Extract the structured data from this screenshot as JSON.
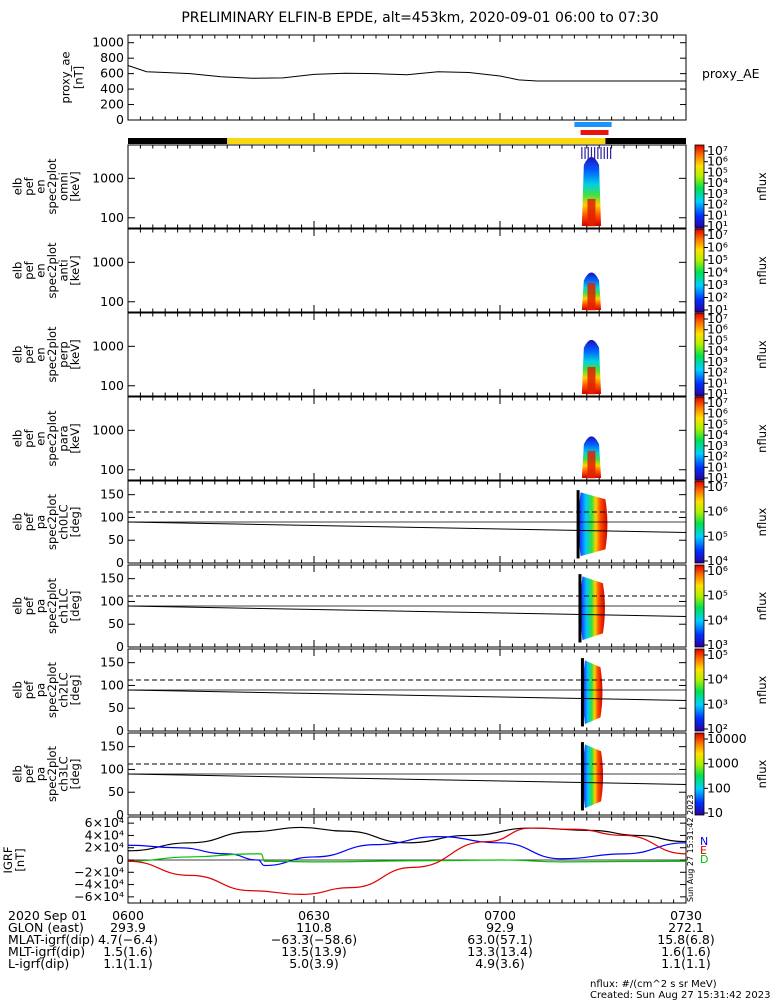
{
  "title": "PRELIMINARY ELFIN-B EPDE, alt=453km, 2020-09-01 06:00 to 07:30",
  "colors": {
    "state_black": "#000000",
    "state_yellow": "#f7d70f",
    "bar_blue": "#1e90ff",
    "bar_red": "#e8140f",
    "bz_black": "#000000",
    "bx_blue": "#0000ff",
    "by_green": "#00c000",
    "bmag_red": "#e00000"
  },
  "chart_data": [
    {
      "id": "proxy_ae",
      "type": "line",
      "ylabel_lines": [
        "proxy_ae",
        "[nT]"
      ],
      "right_label": "proxy_AE",
      "ylim": [
        0,
        1100
      ],
      "yticks": [
        "0",
        "200",
        "400",
        "600",
        "800",
        "1000"
      ],
      "ytick_values": [
        0,
        200,
        400,
        600,
        800,
        1000
      ],
      "xlim_min": [
        0,
        90
      ],
      "x": [
        0,
        3,
        6,
        10,
        15,
        20,
        25,
        30,
        35,
        40,
        45,
        50,
        55,
        60,
        63,
        66,
        70,
        75,
        80,
        85,
        90
      ],
      "y": [
        705,
        625,
        615,
        600,
        560,
        540,
        545,
        590,
        605,
        600,
        585,
        625,
        615,
        570,
        520,
        505,
        505,
        505,
        505,
        505,
        505
      ]
    },
    {
      "id": "state_bar",
      "type": "bar",
      "segments": [
        {
          "start": 0,
          "end": 16,
          "color": "black"
        },
        {
          "start": 16,
          "end": 77,
          "color": "yellow"
        },
        {
          "start": 77,
          "end": 90,
          "color": "black"
        }
      ],
      "blue_bar": [
        72,
        78
      ],
      "red_bar": [
        73,
        77.5
      ]
    },
    {
      "id": "pef_en_omni",
      "type": "heatmap",
      "ylabel_lines": [
        "elb",
        "pef",
        "en",
        "spec2plot",
        "omni",
        "[keV]"
      ],
      "yscale": "log",
      "yticks": [
        "100",
        "1000"
      ],
      "ytick_values": [
        100,
        1000
      ],
      "cbar_title": "nflux",
      "cbar_labels": [
        "10⁷",
        "10⁶",
        "10⁵",
        "10⁴",
        "10³",
        "10²",
        "10¹",
        "10¹"
      ]
    },
    {
      "id": "pef_en_anti",
      "type": "heatmap",
      "ylabel_lines": [
        "elb",
        "pef",
        "en",
        "spec2plot",
        "anti",
        "[keV]"
      ],
      "yscale": "log",
      "yticks": [
        "100",
        "1000"
      ],
      "ytick_values": [
        100,
        1000
      ],
      "cbar_title": "nflux",
      "cbar_labels": [
        "10⁷",
        "10⁶",
        "10⁵",
        "10⁴",
        "10³",
        "10²",
        "10¹"
      ]
    },
    {
      "id": "pef_en_perp",
      "type": "heatmap",
      "ylabel_lines": [
        "elb",
        "pef",
        "en",
        "spec2plot",
        "perp",
        "[keV]"
      ],
      "yscale": "log",
      "yticks": [
        "100",
        "1000"
      ],
      "ytick_values": [
        100,
        1000
      ],
      "cbar_title": "nflux",
      "cbar_labels": [
        "10⁷",
        "10⁶",
        "10⁵",
        "10⁴",
        "10³",
        "10²",
        "10¹",
        "10¹"
      ]
    },
    {
      "id": "pef_en_para",
      "type": "heatmap",
      "ylabel_lines": [
        "elb",
        "pef",
        "en",
        "spec2plot",
        "para",
        "[keV]"
      ],
      "yscale": "log",
      "yticks": [
        "100",
        "1000"
      ],
      "ytick_values": [
        100,
        1000
      ],
      "cbar_title": "nflux",
      "cbar_labels": [
        "10⁷",
        "10⁶",
        "10⁵",
        "10⁴",
        "10³",
        "10²",
        "10¹",
        "10¹"
      ]
    },
    {
      "id": "pef_pa_ch0lc",
      "type": "heatmap",
      "ylabel_lines": [
        "elb",
        "pef",
        "pa",
        "spec2plot",
        "ch0LC",
        "[deg]"
      ],
      "ylim": [
        0,
        180
      ],
      "yticks": [
        "0",
        "50",
        "100",
        "150"
      ],
      "ytick_values": [
        0,
        50,
        100,
        150
      ],
      "cbar_title": "nflux",
      "cbar_labels": [
        "10⁷",
        "10⁶",
        "10⁵",
        "10⁴"
      ]
    },
    {
      "id": "pef_pa_ch1lc",
      "type": "heatmap",
      "ylabel_lines": [
        "elb",
        "pef",
        "pa",
        "spec2plot",
        "ch1LC",
        "[deg]"
      ],
      "ylim": [
        0,
        180
      ],
      "yticks": [
        "0",
        "50",
        "100",
        "150"
      ],
      "ytick_values": [
        0,
        50,
        100,
        150
      ],
      "cbar_title": "nflux",
      "cbar_labels": [
        "10⁶",
        "10⁵",
        "10⁴",
        "10³"
      ]
    },
    {
      "id": "pef_pa_ch2lc",
      "type": "heatmap",
      "ylabel_lines": [
        "elb",
        "pef",
        "pa",
        "spec2plot",
        "ch2LC",
        "[deg]"
      ],
      "ylim": [
        0,
        180
      ],
      "yticks": [
        "0",
        "50",
        "100",
        "150"
      ],
      "ytick_values": [
        0,
        50,
        100,
        150
      ],
      "cbar_title": "nflux",
      "cbar_labels": [
        "10⁵",
        "10⁴",
        "10³",
        "10²"
      ]
    },
    {
      "id": "pef_pa_ch3lc",
      "type": "heatmap",
      "ylabel_lines": [
        "elb",
        "pef",
        "pa",
        "spec2plot",
        "ch3LC",
        "[deg]"
      ],
      "ylim": [
        0,
        180
      ],
      "yticks": [
        "0",
        "50",
        "100",
        "150"
      ],
      "ytick_values": [
        0,
        50,
        100,
        150
      ],
      "cbar_title": "nflux",
      "cbar_labels": [
        "10000",
        "1000",
        "100",
        "10"
      ]
    },
    {
      "id": "igrf",
      "type": "line",
      "ylabel_lines": [
        "IGRF",
        "[nT]"
      ],
      "ylim": [
        -70000,
        70000
      ],
      "yticks": [
        "6×10⁴",
        "4×10⁴",
        "2×10⁴",
        "0",
        "−2×10⁴",
        "−4×10⁴",
        "−6×10⁴"
      ],
      "ytick_values": [
        60000,
        40000,
        20000,
        0,
        -20000,
        -40000,
        -60000
      ],
      "legend": [
        "N",
        "E",
        "D"
      ],
      "side_text": "Sun Aug 27 15:31:42 2023",
      "series": [
        {
          "color": "bz_black",
          "x": [
            0,
            10,
            20,
            28,
            35,
            45,
            55,
            65,
            75,
            82,
            90
          ],
          "y": [
            15000,
            28000,
            46000,
            53000,
            47000,
            28000,
            40000,
            52000,
            48000,
            40000,
            30000
          ]
        },
        {
          "color": "bx_blue",
          "x": [
            0,
            8,
            16,
            21,
            22,
            30,
            40,
            50,
            60,
            70,
            80,
            90
          ],
          "y": [
            24000,
            20000,
            10000,
            0,
            -9000,
            5000,
            25000,
            38000,
            28000,
            2000,
            10000,
            28000
          ]
        },
        {
          "color": "by_green",
          "x": [
            0,
            10,
            20,
            21.5,
            22,
            30,
            50,
            60,
            70,
            90
          ],
          "y": [
            -2000,
            5000,
            10000,
            10000,
            -2000,
            -3000,
            -1000,
            0,
            -3000,
            -2000
          ]
        },
        {
          "color": "bmag_red",
          "x": [
            0,
            10,
            20,
            28,
            36,
            46,
            58,
            65,
            72,
            80,
            90
          ],
          "y": [
            -2000,
            -25000,
            -50000,
            -56000,
            -45000,
            -12000,
            30000,
            52000,
            50000,
            40000,
            10000
          ]
        }
      ]
    }
  ],
  "footer": {
    "rows": [
      {
        "label": "2020 Sep 01",
        "values": [
          "0600",
          "0630",
          "0700",
          "0730"
        ]
      },
      {
        "label": "GLON (east)",
        "values": [
          "293.9",
          "110.8",
          "92.9",
          "272.1"
        ]
      },
      {
        "label": "MLAT-igrf(dip)",
        "values": [
          "4.7(−6.4)",
          "−63.3(−58.6)",
          "63.0(57.1)",
          "15.8(6.8)"
        ]
      },
      {
        "label": "MLT-igrf(dip)",
        "values": [
          "1.5(1.6)",
          "13.5(13.9)",
          "13.3(13.4)",
          "1.6(1.6)"
        ]
      },
      {
        "label": "L-igrf(dip)",
        "values": [
          "1.1(1.1)",
          "5.0(3.9)",
          "4.9(3.6)",
          "1.1(1.1)"
        ]
      }
    ],
    "units_note": "nflux: #/(cm^2 s sr MeV)",
    "created": "Created: Sun Aug 27 15:31:42 2023"
  }
}
